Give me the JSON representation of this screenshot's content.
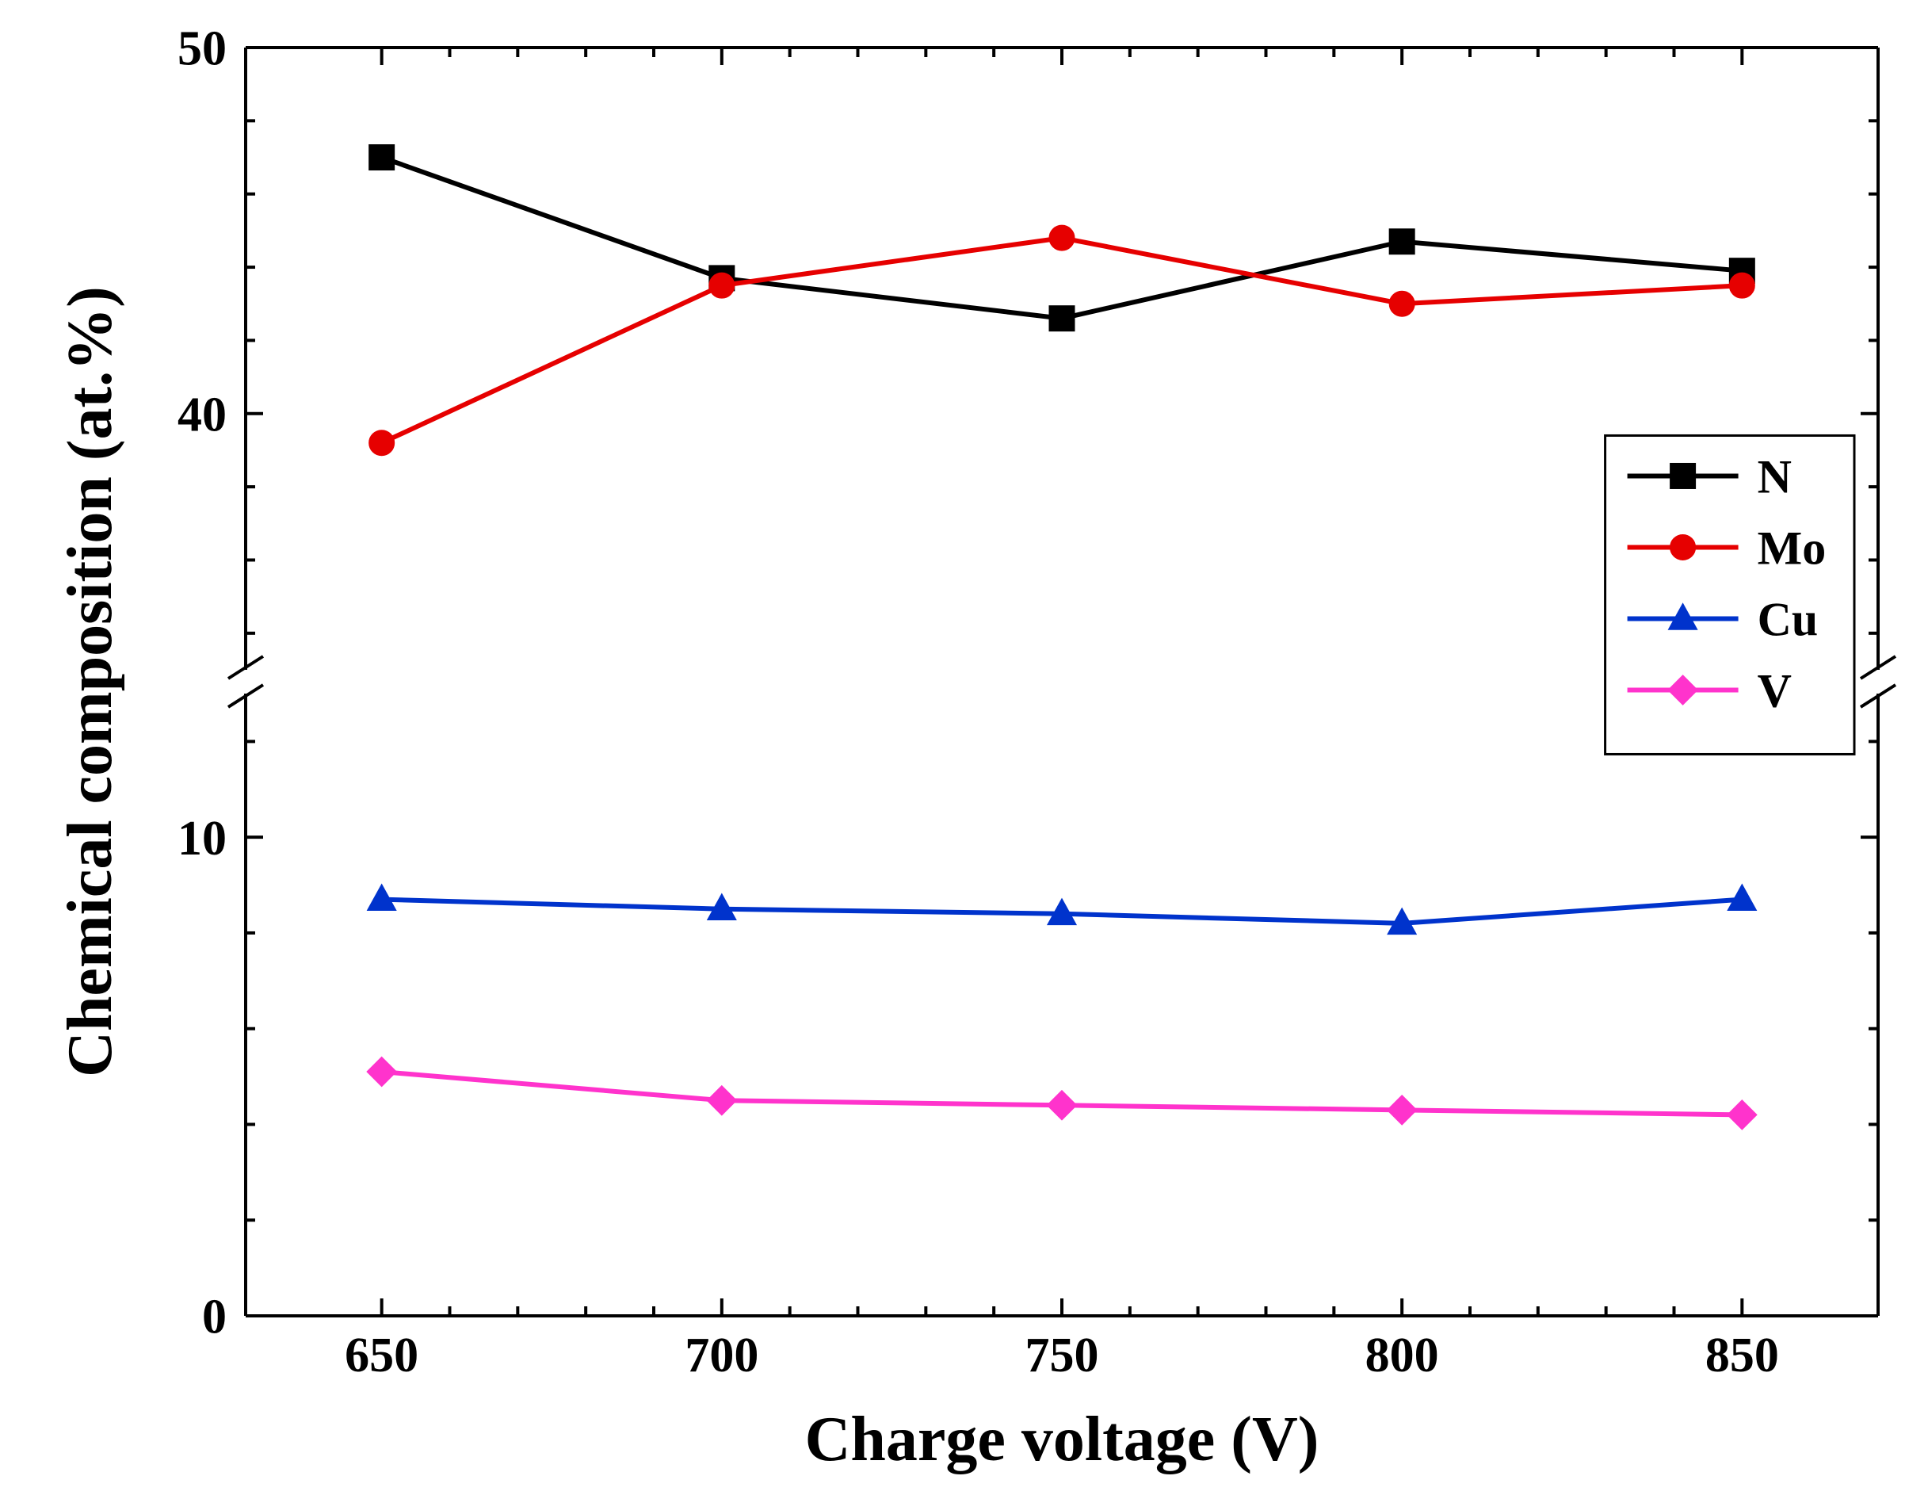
{
  "chart": {
    "type": "line",
    "background_color": "#ffffff",
    "axis_color": "#000000",
    "axis_line_width": 4,
    "tick_line_width": 4,
    "major_tick_length": 22,
    "minor_tick_length": 12,
    "tick_label_fontsize": 62,
    "axis_title_fontsize": 80,
    "xlabel": "Charge voltage (V)",
    "ylabel": "Chemical composition (at.%)",
    "x_ticks": [
      650,
      700,
      750,
      800,
      850
    ],
    "x_minor_step": 10,
    "xlim": [
      630,
      870
    ],
    "y_lower_ticks": [
      0,
      10
    ],
    "y_lower_range": [
      0,
      13
    ],
    "y_upper_ticks": [
      40,
      50
    ],
    "y_upper_range": [
      33,
      50
    ],
    "series_line_width": 6,
    "marker_size": 30,
    "marker_edge_width": 3,
    "legend": {
      "box_stroke": "#000000",
      "box_stroke_width": 3,
      "font_size": 60,
      "items": [
        {
          "label": "N",
          "color": "#000000",
          "marker": "square"
        },
        {
          "label": "Mo",
          "color": "#e60000",
          "marker": "circle"
        },
        {
          "label": "Cu",
          "color": "#0033cc",
          "marker": "triangle"
        },
        {
          "label": "V",
          "color": "#ff33cc",
          "marker": "diamond"
        }
      ]
    },
    "series": [
      {
        "name": "N",
        "color": "#000000",
        "marker": "square",
        "x": [
          650,
          700,
          750,
          800,
          850
        ],
        "y": [
          47.0,
          43.7,
          42.6,
          44.7,
          43.9
        ]
      },
      {
        "name": "Mo",
        "color": "#e60000",
        "marker": "circle",
        "x": [
          650,
          700,
          750,
          800,
          850
        ],
        "y": [
          39.2,
          43.5,
          44.8,
          43.0,
          43.5
        ]
      },
      {
        "name": "Cu",
        "color": "#0033cc",
        "marker": "triangle",
        "x": [
          650,
          700,
          750,
          800,
          850
        ],
        "y": [
          8.7,
          8.5,
          8.4,
          8.2,
          8.7
        ]
      },
      {
        "name": "V",
        "color": "#ff33cc",
        "marker": "diamond",
        "x": [
          650,
          700,
          750,
          800,
          850
        ],
        "y": [
          5.1,
          4.5,
          4.4,
          4.3,
          4.2
        ]
      }
    ]
  }
}
